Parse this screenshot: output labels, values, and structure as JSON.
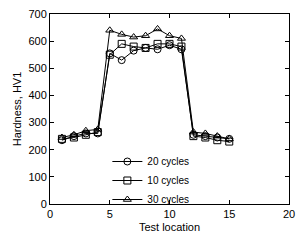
{
  "chart_data": {
    "type": "line",
    "x_label": "Test location",
    "y_label": "Hardness, HV1",
    "x": [
      1,
      2,
      3,
      4,
      5,
      6,
      7,
      8,
      9,
      10,
      11,
      12,
      13,
      14,
      15
    ],
    "series": [
      {
        "name": "20 cycles",
        "color": "#000000",
        "marker": "circle",
        "line_style": "solid",
        "values": [
          235,
          250,
          260,
          260,
          555,
          530,
          565,
          575,
          570,
          585,
          570,
          255,
          250,
          245,
          240
        ]
      },
      {
        "name": "10 cycles",
        "color": "#000000",
        "marker": "square",
        "line_style": "solid",
        "values": [
          240,
          245,
          255,
          265,
          550,
          590,
          580,
          575,
          590,
          590,
          580,
          250,
          245,
          235,
          230
        ]
      },
      {
        "name": "30 cycles",
        "color": "#000000",
        "marker": "triangle",
        "line_style": "solid",
        "values": [
          245,
          255,
          270,
          275,
          640,
          625,
          615,
          620,
          645,
          620,
          610,
          265,
          260,
          250,
          240
        ]
      }
    ],
    "xlim": [
      0,
      20
    ],
    "xticks": [
      0,
      5,
      10,
      15,
      20
    ],
    "ylim": [
      0,
      700
    ],
    "yticks": [
      0,
      100,
      200,
      300,
      400,
      500,
      600,
      700
    ],
    "grid": false,
    "legend": "lower left"
  }
}
